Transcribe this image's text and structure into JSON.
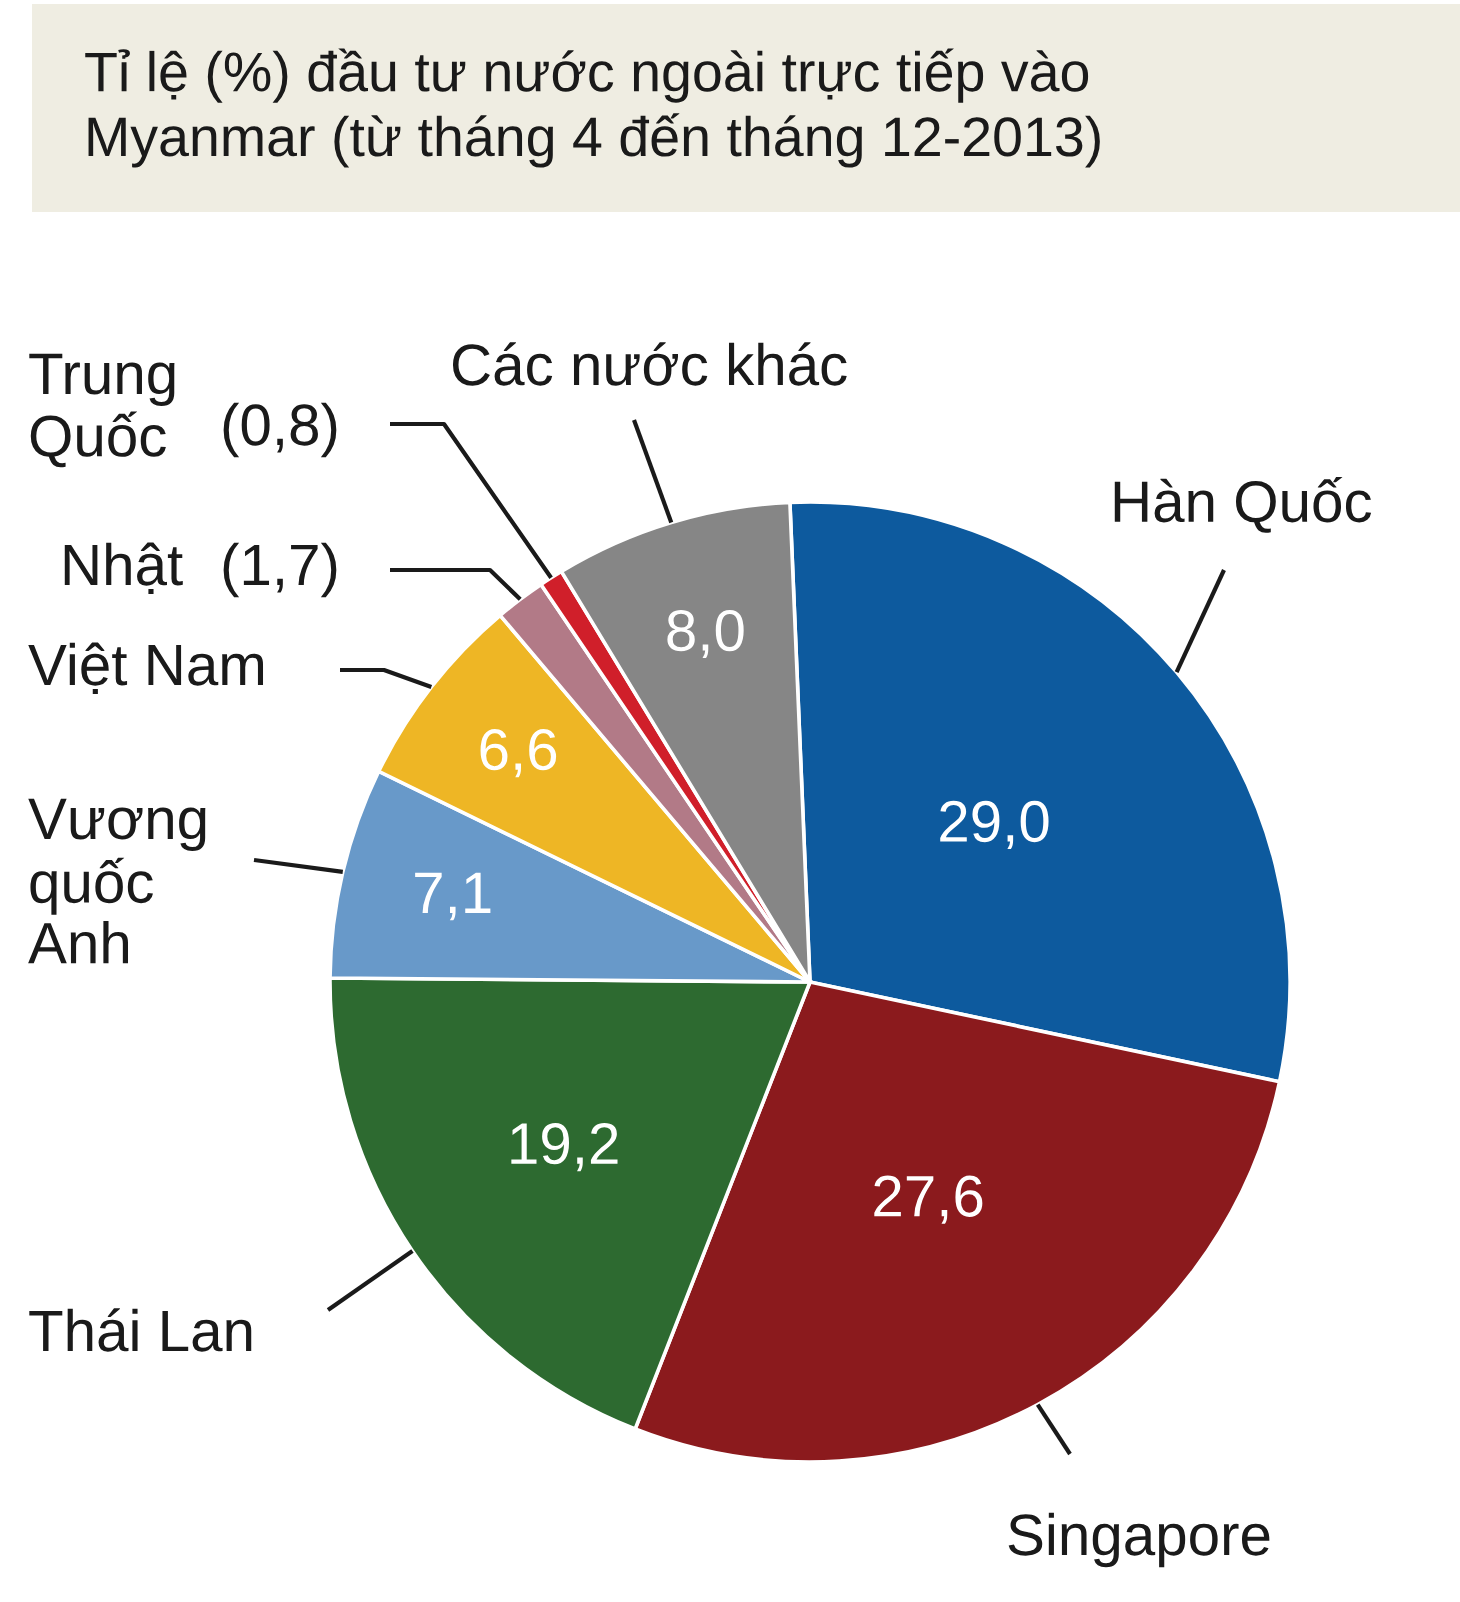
{
  "chart_data": {
    "type": "pie",
    "title": "Tỉ lệ (%) đầu tư nước ngoài trực tiếp vào\nMyanmar (từ tháng 4 đến tháng 12-2013)",
    "categories": [
      "Hàn Quốc",
      "Singapore",
      "Thái Lan",
      "Vương\nquốc\nAnh",
      "Việt Nam",
      "Nhật",
      "Trung\nQuốc",
      "Các nước khác"
    ],
    "values": [
      29.0,
      27.6,
      19.2,
      7.1,
      6.6,
      1.7,
      0.8,
      8.0
    ],
    "colors": [
      "#0d5a9e",
      "#8b1a1d",
      "#2d6a30",
      "#6899c9",
      "#eeb625",
      "#b27a87",
      "#d01f2a",
      "#868686"
    ],
    "value_labels": [
      "29,0",
      "27,6",
      "19,2",
      "7,1",
      "6,6",
      "(1,7)",
      "(0,8)",
      "8,0"
    ]
  }
}
